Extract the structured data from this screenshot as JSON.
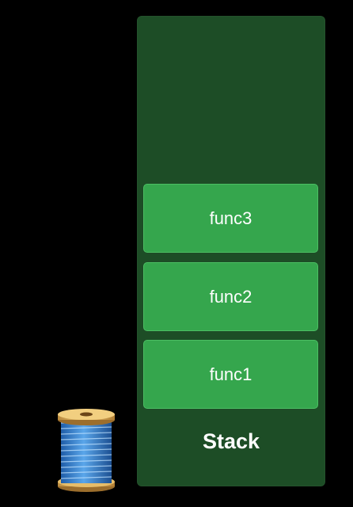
{
  "stack": {
    "label": "Stack",
    "frames": [
      "func3",
      "func2",
      "func1"
    ]
  },
  "icons": {
    "thread": "spool-of-thread-icon"
  },
  "colors": {
    "background": "#000000",
    "stack_panel": "#1d4d26",
    "frame": "#35a64d",
    "text": "#ffffff"
  }
}
